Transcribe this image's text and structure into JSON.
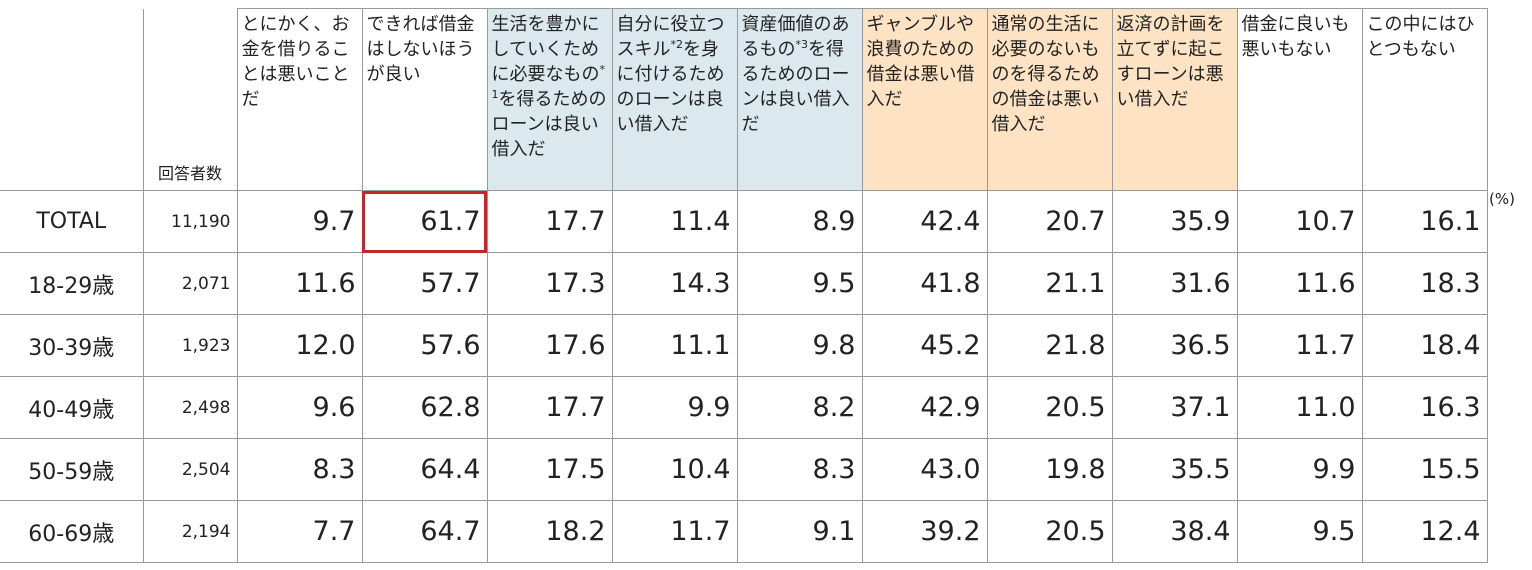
{
  "table": {
    "count_header": "回答者数",
    "unit": "(%)",
    "columns": [
      [
        {
          "text": "とにかく、お金を借りることは悪いことだ"
        }
      ],
      [
        {
          "text": "できれば借金はしないほうが良い"
        }
      ],
      [
        {
          "text": "生活を豊かにしていくために必要なもの"
        },
        {
          "sup": "*1"
        },
        {
          "text": "を得るためのローンは良い借入だ"
        }
      ],
      [
        {
          "text": "自分に役立つスキル"
        },
        {
          "sup": "*2"
        },
        {
          "text": "を身に付けるためのローンは良い借入だ"
        }
      ],
      [
        {
          "text": "資産価値のあるもの"
        },
        {
          "sup": "*3"
        },
        {
          "text": "を得るためのローンは良い借入だ"
        }
      ],
      [
        {
          "text": "ギャンブルや浪費のための借金は悪い借入だ"
        }
      ],
      [
        {
          "text": "通常の生活に必要のないものを得るための借金は悪い借入だ"
        }
      ],
      [
        {
          "text": "返済の計画を立てずに起こすローンは悪い借入だ"
        }
      ],
      [
        {
          "text": "借金に良いも悪いもない"
        }
      ],
      [
        {
          "text": "この中にはひとつもない"
        }
      ]
    ],
    "rows": [
      {
        "label": "TOTAL",
        "count": "11,190",
        "values": [
          "9.7",
          "61.7",
          "17.7",
          "11.4",
          "8.9",
          "42.4",
          "20.7",
          "35.9",
          "10.7",
          "16.1"
        ]
      },
      {
        "label": "18-29歳",
        "count": "2,071",
        "values": [
          "11.6",
          "57.7",
          "17.3",
          "14.3",
          "9.5",
          "41.8",
          "21.1",
          "31.6",
          "11.6",
          "18.3"
        ]
      },
      {
        "label": "30-39歳",
        "count": "1,923",
        "values": [
          "12.0",
          "57.6",
          "17.6",
          "11.1",
          "9.8",
          "45.2",
          "21.8",
          "36.5",
          "11.7",
          "18.4"
        ]
      },
      {
        "label": "40-49歳",
        "count": "2,498",
        "values": [
          "9.6",
          "62.8",
          "17.7",
          "9.9",
          "8.2",
          "42.9",
          "20.5",
          "37.1",
          "11.0",
          "16.3"
        ]
      },
      {
        "label": "50-59歳",
        "count": "2,504",
        "values": [
          "8.3",
          "64.4",
          "17.5",
          "10.4",
          "8.3",
          "43.0",
          "19.8",
          "35.5",
          "9.9",
          "15.5"
        ]
      },
      {
        "label": "60-69歳",
        "count": "2,194",
        "values": [
          "7.7",
          "64.7",
          "18.2",
          "11.7",
          "9.1",
          "39.2",
          "20.5",
          "38.4",
          "9.5",
          "12.4"
        ]
      }
    ]
  }
}
